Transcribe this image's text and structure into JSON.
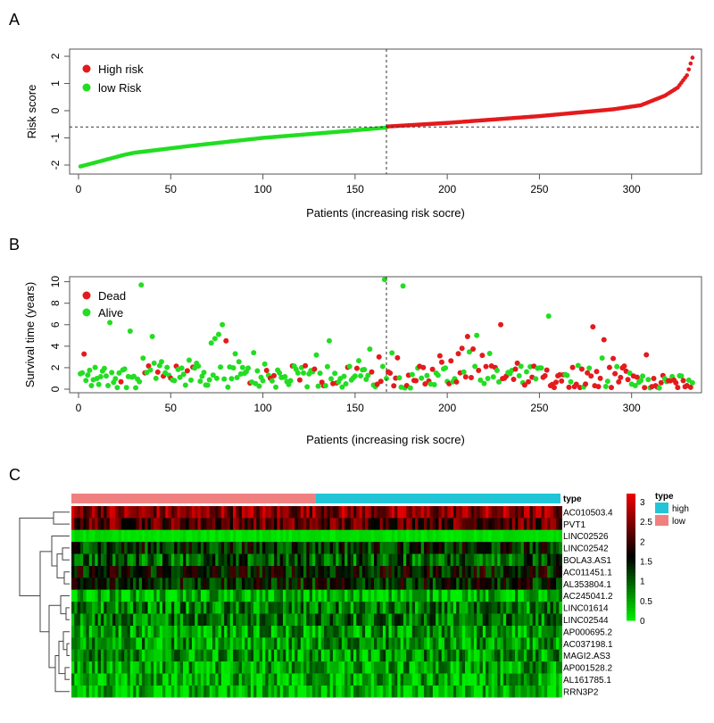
{
  "panels": {
    "a": {
      "label": "A"
    },
    "b": {
      "label": "B"
    },
    "c": {
      "label": "C"
    }
  },
  "chart_data": [
    {
      "type": "scatter",
      "panel": "A",
      "xlabel": "Patients (increasing risk socre)",
      "ylabel": "Risk score",
      "xlim": [
        0,
        335
      ],
      "ylim": [
        -2.1,
        2.1
      ],
      "x_ticks": [
        0,
        50,
        100,
        150,
        200,
        250,
        300
      ],
      "y_ticks": [
        -2,
        -1,
        0,
        1,
        2
      ],
      "cutoff_x": 167,
      "cutoff_y": -0.6,
      "legend": {
        "position": "top-left",
        "entries": [
          {
            "name": "High risk",
            "color": "#e41a1c"
          },
          {
            "name": "low Risk",
            "color": "#22dd22"
          }
        ]
      },
      "series": [
        {
          "name": "low Risk",
          "color": "#22dd22",
          "x_range": [
            1,
            167
          ],
          "curve_x": [
            1,
            5,
            15,
            25,
            30,
            60,
            100,
            140,
            167
          ],
          "curve_y": [
            -2.05,
            -1.98,
            -1.8,
            -1.62,
            -1.55,
            -1.3,
            -1.0,
            -0.78,
            -0.62
          ]
        },
        {
          "name": "High risk",
          "color": "#e41a1c",
          "x_range": [
            168,
            333
          ],
          "curve_x": [
            168,
            200,
            250,
            290,
            305,
            318,
            325,
            330,
            333
          ],
          "curve_y": [
            -0.58,
            -0.45,
            -0.2,
            0.05,
            0.2,
            0.55,
            0.85,
            1.3,
            1.95
          ]
        }
      ]
    },
    {
      "type": "scatter",
      "panel": "B",
      "xlabel": "Patients (increasing risk socre)",
      "ylabel": "Survival time (years)",
      "xlim": [
        0,
        335
      ],
      "ylim": [
        0,
        10.3
      ],
      "x_ticks": [
        0,
        50,
        100,
        150,
        200,
        250,
        300
      ],
      "y_ticks": [
        0,
        2,
        4,
        6,
        8,
        10
      ],
      "cutoff_x": 167,
      "legend": {
        "position": "top-left",
        "entries": [
          {
            "name": "Dead",
            "color": "#e41a1c"
          },
          {
            "name": "Alive",
            "color": "#22dd22"
          }
        ]
      },
      "highlight_points": [
        {
          "status": "Alive",
          "x": 17,
          "y": 6.2
        },
        {
          "status": "Alive",
          "x": 28,
          "y": 5.4
        },
        {
          "status": "Alive",
          "x": 34,
          "y": 9.7
        },
        {
          "status": "Alive",
          "x": 40,
          "y": 4.9
        },
        {
          "status": "Alive",
          "x": 60,
          "y": 2.7
        },
        {
          "status": "Alive",
          "x": 72,
          "y": 4.3
        },
        {
          "status": "Alive",
          "x": 74,
          "y": 4.7
        },
        {
          "status": "Alive",
          "x": 76,
          "y": 5.1
        },
        {
          "status": "Alive",
          "x": 78,
          "y": 6.0
        },
        {
          "status": "Dead",
          "x": 80,
          "y": 4.5
        },
        {
          "status": "Alive",
          "x": 136,
          "y": 4.5
        },
        {
          "status": "Dead",
          "x": 163,
          "y": 3.0
        },
        {
          "status": "Alive",
          "x": 166,
          "y": 10.2
        },
        {
          "status": "Alive",
          "x": 176,
          "y": 9.6
        },
        {
          "status": "Dead",
          "x": 208,
          "y": 3.8
        },
        {
          "status": "Dead",
          "x": 211,
          "y": 4.9
        },
        {
          "status": "Alive",
          "x": 216,
          "y": 5.0
        },
        {
          "status": "Dead",
          "x": 229,
          "y": 6.0
        },
        {
          "status": "Alive",
          "x": 255,
          "y": 6.8
        },
        {
          "status": "Dead",
          "x": 279,
          "y": 5.8
        },
        {
          "status": "Dead",
          "x": 285,
          "y": 4.6
        },
        {
          "status": "Dead",
          "x": 308,
          "y": 3.2
        }
      ],
      "bulk": {
        "n_patients": 333,
        "typical_range": [
          0,
          2.5
        ],
        "low_risk_status": "Alive",
        "high_risk_status": "Dead"
      }
    },
    {
      "type": "heatmap",
      "panel": "C",
      "rows": [
        "AC010503.4",
        "PVT1",
        "LINC02526",
        "LINC02542",
        "BOLA3.AS1",
        "AC011451.1",
        "AL353804.1",
        "AC245041.2",
        "LINC01614",
        "LINC02544",
        "AP000695.2",
        "AC037198.1",
        "MAGI2.AS3",
        "AP001528.2",
        "AL161785.1",
        "RRN3P2"
      ],
      "row_means": [
        2.5,
        2.2,
        0.1,
        1.3,
        1.0,
        1.5,
        1.4,
        0.3,
        0.7,
        0.8,
        0.5,
        0.6,
        0.6,
        0.5,
        0.4,
        0.3
      ],
      "n_columns": 333,
      "annotation": {
        "title": "type",
        "groups": [
          {
            "name": "low",
            "color": "#f08080",
            "fraction": 0.5
          },
          {
            "name": "high",
            "color": "#22c5d8",
            "fraction": 0.5
          }
        ]
      },
      "color_scale": {
        "min": 0,
        "max": 3.2,
        "colors": [
          "#00ee00",
          "#000000",
          "#ee0000"
        ],
        "ticks": [
          0,
          0.5,
          1,
          1.5,
          2,
          2.5,
          3
        ]
      },
      "legend": {
        "title": "type",
        "entries": [
          {
            "name": "high",
            "color": "#22c5d8"
          },
          {
            "name": "low",
            "color": "#f08080"
          }
        ]
      },
      "dendrogram": "left"
    }
  ]
}
